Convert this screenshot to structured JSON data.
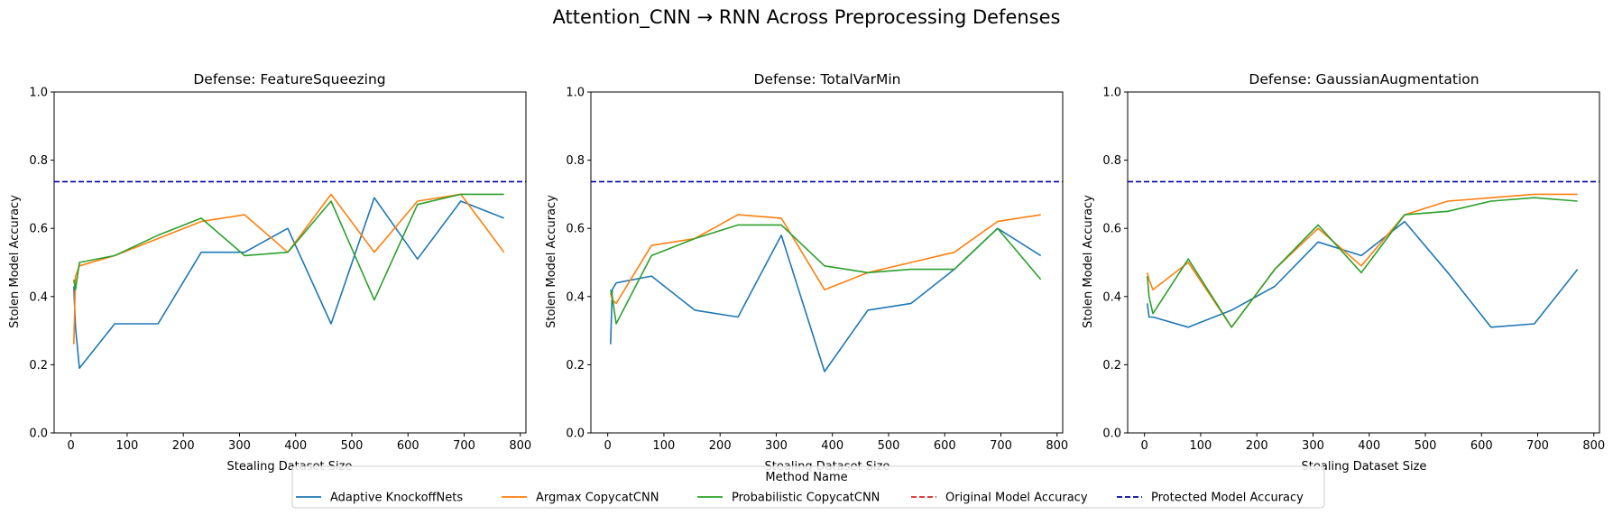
{
  "figure_title": "Attention_CNN → RNN Across Preprocessing Defenses",
  "legend": {
    "title": "Method Name",
    "placement": "bottom-center",
    "entries": [
      {
        "label": "Adaptive KnockoffNets",
        "color": "#1f77b4",
        "style": "solid"
      },
      {
        "label": "Argmax CopycatCNN",
        "color": "#ff7f0e",
        "style": "solid"
      },
      {
        "label": "Probabilistic CopycatCNN",
        "color": "#2ca02c",
        "style": "solid"
      },
      {
        "label": "Original Model Accuracy",
        "color": "#d62728",
        "style": "dashed"
      },
      {
        "label": "Protected Model Accuracy",
        "color": "#0000aa",
        "style": "dashed"
      }
    ]
  },
  "chart_data": [
    {
      "type": "line",
      "title": "Defense: FeatureSqueezing",
      "xlabel": "Stealing Dataset Size",
      "ylabel": "Stolen Model Accuracy",
      "xlim": [
        -30,
        810
      ],
      "ylim": [
        0,
        1
      ],
      "xticks": [
        0,
        100,
        200,
        300,
        400,
        500,
        600,
        700,
        800
      ],
      "yticks": [
        "0.0",
        "0.2",
        "0.4",
        "0.6",
        "0.8",
        "1.0"
      ],
      "grid": false,
      "hlines": [
        {
          "name": "Protected Model Accuracy",
          "y": 0.737,
          "color": "#0000aa"
        }
      ],
      "series": [
        {
          "name": "Adaptive KnockoffNets",
          "color": "#1f77b4",
          "x": [
            5,
            8,
            15,
            78,
            155,
            232,
            309,
            386,
            463,
            540,
            617,
            694,
            771
          ],
          "y": [
            0.43,
            0.31,
            0.19,
            0.32,
            0.32,
            0.53,
            0.53,
            0.6,
            0.32,
            0.69,
            0.51,
            0.68,
            0.63
          ]
        },
        {
          "name": "Argmax CopycatCNN",
          "color": "#ff7f0e",
          "x": [
            5,
            8,
            15,
            78,
            155,
            232,
            309,
            386,
            463,
            540,
            617,
            694,
            771
          ],
          "y": [
            0.26,
            0.46,
            0.49,
            0.52,
            0.57,
            0.62,
            0.64,
            0.53,
            0.7,
            0.53,
            0.68,
            0.7,
            0.53
          ]
        },
        {
          "name": "Probabilistic CopycatCNN",
          "color": "#2ca02c",
          "x": [
            5,
            8,
            15,
            78,
            155,
            232,
            309,
            386,
            463,
            540,
            617,
            694,
            771
          ],
          "y": [
            0.45,
            0.42,
            0.5,
            0.52,
            0.58,
            0.63,
            0.52,
            0.53,
            0.68,
            0.39,
            0.67,
            0.7,
            0.7
          ]
        }
      ]
    },
    {
      "type": "line",
      "title": "Defense: TotalVarMin",
      "xlabel": "Stealing Dataset Size",
      "ylabel": "Stolen Model Accuracy",
      "xlim": [
        -30,
        810
      ],
      "ylim": [
        0,
        1
      ],
      "xticks": [
        0,
        100,
        200,
        300,
        400,
        500,
        600,
        700,
        800
      ],
      "yticks": [
        "0.0",
        "0.2",
        "0.4",
        "0.6",
        "0.8",
        "1.0"
      ],
      "grid": false,
      "hlines": [
        {
          "name": "Protected Model Accuracy",
          "y": 0.737,
          "color": "#0000aa"
        }
      ],
      "series": [
        {
          "name": "Adaptive KnockoffNets",
          "color": "#1f77b4",
          "x": [
            5,
            8,
            15,
            78,
            155,
            232,
            309,
            386,
            463,
            540,
            617,
            694,
            771
          ],
          "y": [
            0.26,
            0.42,
            0.44,
            0.46,
            0.36,
            0.34,
            0.58,
            0.18,
            0.36,
            0.38,
            0.48,
            0.6,
            0.52
          ]
        },
        {
          "name": "Argmax CopycatCNN",
          "color": "#ff7f0e",
          "x": [
            5,
            8,
            15,
            78,
            155,
            232,
            309,
            386,
            463,
            540,
            617,
            694,
            771
          ],
          "y": [
            0.41,
            0.39,
            0.38,
            0.55,
            0.57,
            0.64,
            0.63,
            0.42,
            0.47,
            0.5,
            0.53,
            0.62,
            0.64
          ]
        },
        {
          "name": "Probabilistic CopycatCNN",
          "color": "#2ca02c",
          "x": [
            5,
            8,
            15,
            78,
            155,
            232,
            309,
            386,
            463,
            540,
            617,
            694,
            771
          ],
          "y": [
            0.42,
            0.4,
            0.32,
            0.52,
            0.57,
            0.61,
            0.61,
            0.49,
            0.47,
            0.48,
            0.48,
            0.6,
            0.45
          ]
        }
      ]
    },
    {
      "type": "line",
      "title": "Defense: GaussianAugmentation",
      "xlabel": "Stealing Dataset Size",
      "ylabel": "Stolen Model Accuracy",
      "xlim": [
        -30,
        810
      ],
      "ylim": [
        0,
        1
      ],
      "xticks": [
        0,
        100,
        200,
        300,
        400,
        500,
        600,
        700,
        800
      ],
      "yticks": [
        "0.0",
        "0.2",
        "0.4",
        "0.6",
        "0.8",
        "1.0"
      ],
      "grid": false,
      "hlines": [
        {
          "name": "Protected Model Accuracy",
          "y": 0.737,
          "color": "#0000aa"
        }
      ],
      "series": [
        {
          "name": "Adaptive KnockoffNets",
          "color": "#1f77b4",
          "x": [
            5,
            8,
            15,
            78,
            155,
            232,
            309,
            386,
            463,
            540,
            617,
            694,
            771
          ],
          "y": [
            0.38,
            0.34,
            0.34,
            0.31,
            0.36,
            0.43,
            0.56,
            0.52,
            0.62,
            0.47,
            0.31,
            0.32,
            0.48
          ]
        },
        {
          "name": "Argmax CopycatCNN",
          "color": "#ff7f0e",
          "x": [
            5,
            8,
            15,
            78,
            155,
            232,
            309,
            386,
            463,
            540,
            617,
            694,
            771
          ],
          "y": [
            0.47,
            0.45,
            0.42,
            0.5,
            0.31,
            0.48,
            0.6,
            0.49,
            0.64,
            0.68,
            0.69,
            0.7,
            0.7
          ]
        },
        {
          "name": "Probabilistic CopycatCNN",
          "color": "#2ca02c",
          "x": [
            5,
            8,
            15,
            78,
            155,
            232,
            309,
            386,
            463,
            540,
            617,
            694,
            771
          ],
          "y": [
            0.46,
            0.4,
            0.35,
            0.51,
            0.31,
            0.48,
            0.61,
            0.47,
            0.64,
            0.65,
            0.68,
            0.69,
            0.68
          ]
        }
      ]
    }
  ]
}
